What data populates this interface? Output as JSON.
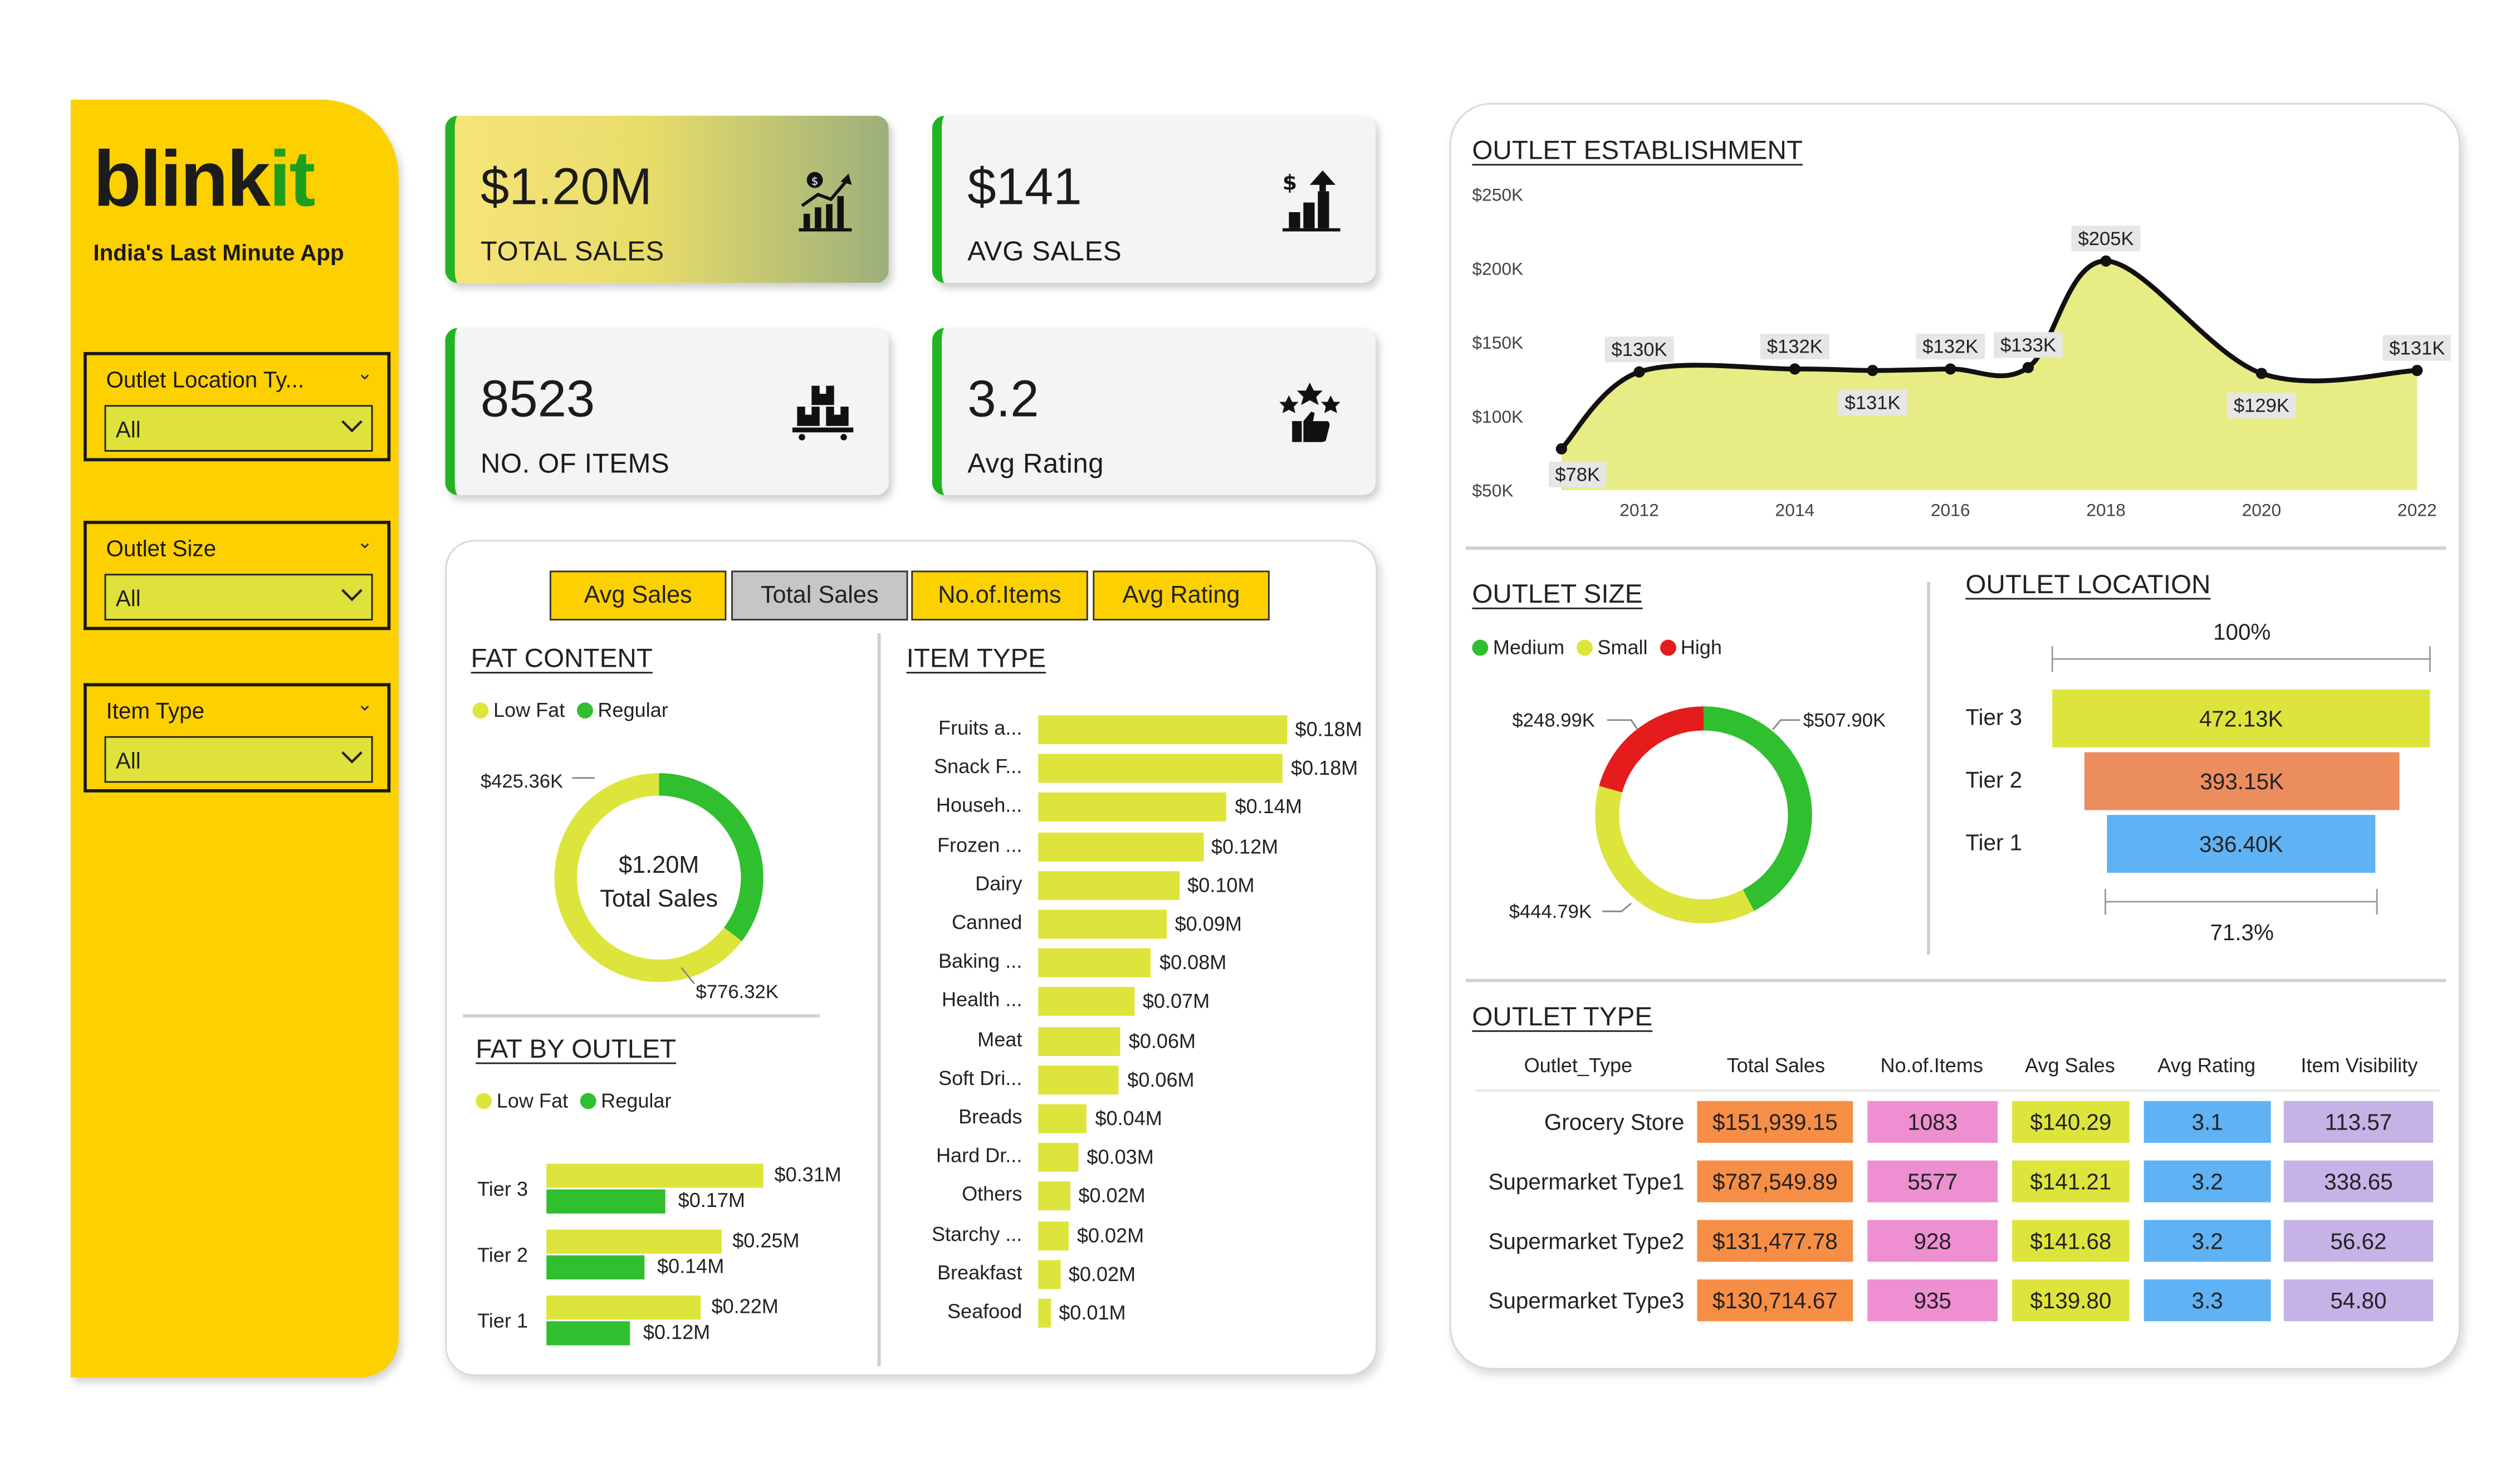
{
  "brand": {
    "name_part1": "blink",
    "name_part2": "it",
    "tagline": "India's Last Minute App"
  },
  "filters": [
    {
      "label": "Outlet Location Ty...",
      "value": "All"
    },
    {
      "label": "Outlet Size",
      "value": "All"
    },
    {
      "label": "Item Type",
      "value": "All"
    }
  ],
  "kpis": {
    "total_sales": {
      "value": "$1.20M",
      "label": "TOTAL SALES",
      "icon": "sales-growth-icon"
    },
    "avg_sales": {
      "value": "$141",
      "label": "AVG SALES",
      "icon": "dollar-bars-icon"
    },
    "items": {
      "value": "8523",
      "label": "NO. OF ITEMS",
      "icon": "boxes-icon"
    },
    "rating": {
      "value": "3.2",
      "label": "Avg Rating",
      "icon": "stars-thumb-icon"
    }
  },
  "tabs": [
    "Avg Sales",
    "Total Sales",
    "No.of.Items",
    "Avg Rating"
  ],
  "selected_tab": "Total Sales",
  "colors": {
    "yellow": "#fdd000",
    "lime": "#dde53c",
    "green": "#2fbf2f",
    "red": "#e51c1c",
    "accent_green": "#22b422"
  },
  "fat_content": {
    "title": "FAT CONTENT",
    "legend": [
      "Low Fat",
      "Regular"
    ],
    "center_value": "$1.20M",
    "center_label": "Total Sales",
    "label_regular": "$425.36K",
    "label_lowfat": "$776.32K"
  },
  "fat_by_outlet": {
    "title": "FAT BY OUTLET",
    "legend": [
      "Low Fat",
      "Regular"
    ]
  },
  "item_type": {
    "title": "ITEM TYPE"
  },
  "outlet_establishment": {
    "title": "OUTLET ESTABLISHMENT"
  },
  "outlet_size": {
    "title": "OUTLET SIZE",
    "legend": [
      "Medium",
      "Small",
      "High"
    ],
    "label_high": "$248.99K",
    "label_medium": "$507.90K",
    "label_small": "$444.79K"
  },
  "outlet_location": {
    "title": "OUTLET LOCATION",
    "top_pct": "100%",
    "bottom_pct": "71.3%",
    "tiers": [
      {
        "name": "Tier 3",
        "value": "472.13K"
      },
      {
        "name": "Tier 2",
        "value": "393.15K"
      },
      {
        "name": "Tier 1",
        "value": "336.40K"
      }
    ]
  },
  "outlet_type": {
    "title": "OUTLET TYPE",
    "headers": [
      "Outlet_Type",
      "Total Sales",
      "No.of.Items",
      "Avg Sales",
      "Avg Rating",
      "Item Visibility"
    ],
    "rows": [
      {
        "type": "Grocery Store",
        "total_sales": "$151,939.15",
        "items": "1083",
        "avg_sales": "$140.29",
        "avg_rating": "3.1",
        "visibility": "113.57"
      },
      {
        "type": "Supermarket Type1",
        "total_sales": "$787,549.89",
        "items": "5577",
        "avg_sales": "$141.21",
        "avg_rating": "3.2",
        "visibility": "338.65"
      },
      {
        "type": "Supermarket Type2",
        "total_sales": "$131,477.78",
        "items": "928",
        "avg_sales": "$141.68",
        "avg_rating": "3.2",
        "visibility": "56.62"
      },
      {
        "type": "Supermarket Type3",
        "total_sales": "$130,714.67",
        "items": "935",
        "avg_sales": "$139.80",
        "avg_rating": "3.3",
        "visibility": "54.80"
      }
    ]
  },
  "chart_data": [
    {
      "id": "fat_content",
      "type": "pie",
      "categories": [
        "Low Fat",
        "Regular"
      ],
      "values": [
        776.32,
        425.36
      ],
      "unit": "$K"
    },
    {
      "id": "fat_by_outlet",
      "type": "bar",
      "categories": [
        "Tier 3",
        "Tier 2",
        "Tier 1"
      ],
      "series": [
        {
          "name": "Low Fat",
          "values": [
            0.31,
            0.25,
            0.22
          ],
          "labels": [
            "$0.31M",
            "$0.25M",
            "$0.22M"
          ]
        },
        {
          "name": "Regular",
          "values": [
            0.17,
            0.14,
            0.12
          ],
          "labels": [
            "$0.17M",
            "$0.14M",
            "$0.12M"
          ]
        }
      ]
    },
    {
      "id": "item_type",
      "type": "bar",
      "categories": [
        "Fruits a...",
        "Snack F...",
        "Househ...",
        "Frozen ...",
        "Dairy",
        "Canned",
        "Baking ...",
        "Health ...",
        "Meat",
        "Soft Dri...",
        "Breads",
        "Hard Dr...",
        "Others",
        "Starchy ...",
        "Breakfast",
        "Seafood"
      ],
      "values": [
        0.178,
        0.175,
        0.135,
        0.118,
        0.101,
        0.092,
        0.081,
        0.069,
        0.059,
        0.058,
        0.035,
        0.029,
        0.023,
        0.022,
        0.016,
        0.009
      ],
      "labels": [
        "$0.18M",
        "$0.18M",
        "$0.14M",
        "$0.12M",
        "$0.10M",
        "$0.09M",
        "$0.08M",
        "$0.07M",
        "$0.06M",
        "$0.06M",
        "$0.04M",
        "$0.03M",
        "$0.02M",
        "$0.02M",
        "$0.02M",
        "$0.01M"
      ]
    },
    {
      "id": "outlet_establishment",
      "type": "area",
      "x": [
        2011,
        2012,
        2014,
        2015,
        2016,
        2017,
        2018,
        2020,
        2022
      ],
      "values": [
        78,
        130,
        132,
        131,
        132,
        133,
        205,
        129,
        131
      ],
      "labels": [
        "$78K",
        "$130K",
        "$132K",
        "$131K",
        "$132K",
        "$133K",
        "$205K",
        "$129K",
        "$131K"
      ],
      "yticks": [
        "$50K",
        "$100K",
        "$150K",
        "$200K",
        "$250K"
      ],
      "ylim": [
        50,
        250
      ],
      "xticks": [
        "2012",
        "2014",
        "2016",
        "2018",
        "2020",
        "2022"
      ]
    },
    {
      "id": "outlet_size",
      "type": "pie",
      "categories": [
        "Medium",
        "Small",
        "High"
      ],
      "values": [
        507.9,
        444.79,
        248.99
      ],
      "unit": "$K"
    }
  ]
}
